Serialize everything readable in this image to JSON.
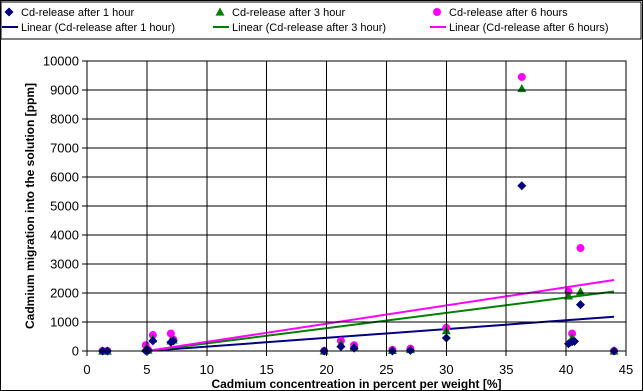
{
  "chart_data": {
    "type": "scatter",
    "title": "",
    "xlabel": "Cadmium concentreation in percent per weight [%]",
    "ylabel": "Cadmium migration into the solution [ppm]",
    "xlim": [
      0,
      45
    ],
    "ylim": [
      0,
      10000
    ],
    "x_ticks": [
      0,
      5,
      10,
      15,
      20,
      25,
      30,
      35,
      40,
      45
    ],
    "y_ticks": [
      0,
      1000,
      2000,
      3000,
      4000,
      5000,
      6000,
      7000,
      8000,
      9000,
      10000
    ],
    "grid": true,
    "legend_position": "top",
    "series": [
      {
        "name": "Cd-release after 1 hour",
        "marker": "diamond",
        "color": "#000080",
        "points": [
          [
            1.3,
            0
          ],
          [
            1.7,
            0
          ],
          [
            4.9,
            10
          ],
          [
            5.1,
            20
          ],
          [
            5.5,
            350
          ],
          [
            7.0,
            300
          ],
          [
            7.2,
            350
          ],
          [
            19.8,
            0
          ],
          [
            21.2,
            150
          ],
          [
            22.3,
            100
          ],
          [
            25.5,
            0
          ],
          [
            27.0,
            20
          ],
          [
            30.0,
            450
          ],
          [
            36.3,
            5700
          ],
          [
            40.2,
            250
          ],
          [
            40.5,
            320
          ],
          [
            40.7,
            330
          ],
          [
            41.2,
            1600
          ],
          [
            44.0,
            0
          ]
        ]
      },
      {
        "name": "Cd-release after 3 hour",
        "marker": "triangle",
        "color": "#008000",
        "points": [
          [
            1.3,
            0
          ],
          [
            1.7,
            0
          ],
          [
            4.9,
            80
          ],
          [
            5.1,
            30
          ],
          [
            5.5,
            420
          ],
          [
            7.0,
            350
          ],
          [
            7.2,
            380
          ],
          [
            19.8,
            0
          ],
          [
            21.2,
            250
          ],
          [
            22.3,
            150
          ],
          [
            25.5,
            20
          ],
          [
            27.0,
            50
          ],
          [
            30.0,
            700
          ],
          [
            36.3,
            9050
          ],
          [
            40.2,
            1900
          ],
          [
            40.5,
            450
          ],
          [
            41.2,
            2050
          ],
          [
            44.0,
            0
          ]
        ]
      },
      {
        "name": "Cd-release after 6 hours",
        "marker": "circle",
        "color": "#ff00ff",
        "points": [
          [
            1.3,
            0
          ],
          [
            1.7,
            0
          ],
          [
            4.9,
            200
          ],
          [
            5.1,
            40
          ],
          [
            5.5,
            550
          ],
          [
            7.0,
            600
          ],
          [
            7.2,
            400
          ],
          [
            19.8,
            0
          ],
          [
            21.2,
            350
          ],
          [
            22.3,
            200
          ],
          [
            25.5,
            40
          ],
          [
            27.0,
            80
          ],
          [
            30.0,
            800
          ],
          [
            36.3,
            9450
          ],
          [
            40.2,
            2050
          ],
          [
            40.5,
            600
          ],
          [
            41.2,
            3550
          ],
          [
            44.0,
            0
          ]
        ]
      }
    ],
    "trendlines": [
      {
        "name": "Linear (Cd-release after 1 hour)",
        "color": "#000080",
        "from": [
          5,
          0
        ],
        "to": [
          44,
          1180
        ]
      },
      {
        "name": "Linear (Cd-release after 3 hour)",
        "color": "#008000",
        "from": [
          5,
          0
        ],
        "to": [
          44,
          2050
        ]
      },
      {
        "name": "Linear (Cd-release after 6 hours)",
        "color": "#ff00ff",
        "from": [
          5,
          0
        ],
        "to": [
          44,
          2450
        ]
      }
    ]
  }
}
